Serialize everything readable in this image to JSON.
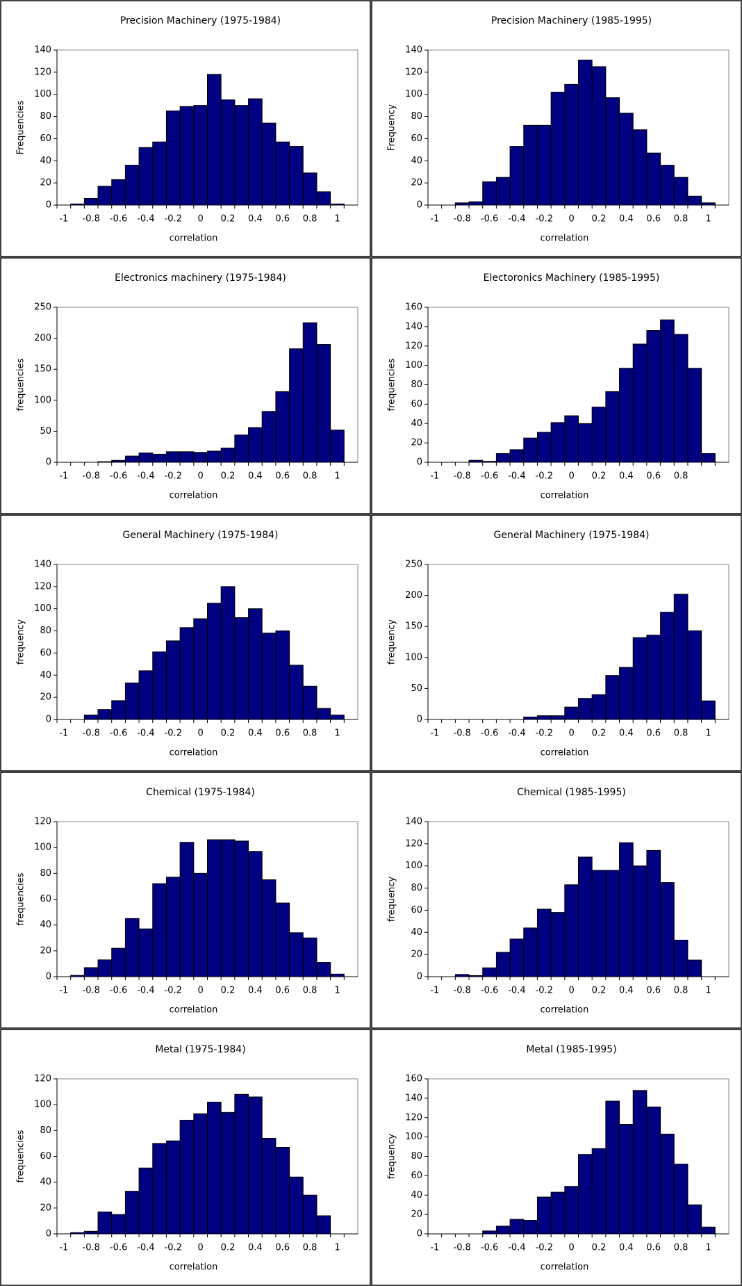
{
  "chart_data": [
    {
      "type": "histogram",
      "title": "Precision Machinery (1975-1984)",
      "x_label": "correlation",
      "y_label": "Frequencies",
      "color": "#000080",
      "bins": [
        -1.05,
        -0.95,
        -0.85,
        -0.75,
        -0.65,
        -0.55,
        -0.45,
        -0.35,
        -0.25,
        -0.15,
        -0.05,
        0.05,
        0.15,
        0.25,
        0.35,
        0.45,
        0.55,
        0.65,
        0.75,
        0.85,
        0.95,
        1.05
      ],
      "values": [
        0,
        1,
        6,
        17,
        23,
        36,
        52,
        57,
        85,
        89,
        90,
        118,
        95,
        90,
        96,
        74,
        57,
        53,
        29,
        12,
        1
      ],
      "xlim": [
        -1.05,
        1.15
      ],
      "xticks": [
        -1,
        -0.8,
        -0.6,
        -0.4,
        -0.2,
        0,
        0.2,
        0.4,
        0.6,
        0.8,
        1
      ],
      "ylim": [
        0,
        140
      ],
      "yticks": [
        0,
        20,
        40,
        60,
        80,
        100,
        120,
        140
      ]
    },
    {
      "type": "histogram",
      "title": "Precision Machinery (1985-1995)",
      "x_label": "correlation",
      "y_label": "Frequency",
      "color": "#000080",
      "bins": [
        -1.05,
        -0.95,
        -0.85,
        -0.75,
        -0.65,
        -0.55,
        -0.45,
        -0.35,
        -0.25,
        -0.15,
        -0.05,
        0.05,
        0.15,
        0.25,
        0.35,
        0.45,
        0.55,
        0.65,
        0.75,
        0.85,
        0.95,
        1.05
      ],
      "values": [
        0,
        0,
        2,
        3,
        21,
        25,
        53,
        72,
        72,
        102,
        109,
        131,
        125,
        97,
        83,
        68,
        47,
        36,
        25,
        8,
        2
      ],
      "xlim": [
        -1.05,
        1.15
      ],
      "xticks": [
        -1,
        -0.8,
        -0.6,
        -0.4,
        -0.2,
        0,
        0.2,
        0.4,
        0.6,
        0.8,
        1
      ],
      "ylim": [
        0,
        140
      ],
      "yticks": [
        0,
        20,
        40,
        60,
        80,
        100,
        120,
        140
      ]
    },
    {
      "type": "histogram",
      "title": "Electronics machinery (1975-1984)",
      "x_label": "correlation",
      "y_label": "frequencies",
      "color": "#000080",
      "bins": [
        -1.05,
        -0.95,
        -0.85,
        -0.75,
        -0.65,
        -0.55,
        -0.45,
        -0.35,
        -0.25,
        -0.15,
        -0.05,
        0.05,
        0.15,
        0.25,
        0.35,
        0.45,
        0.55,
        0.65,
        0.75,
        0.85,
        0.95,
        1.05
      ],
      "values": [
        0,
        0,
        0,
        1,
        3,
        10,
        15,
        13,
        17,
        17,
        16,
        18,
        23,
        44,
        56,
        82,
        114,
        183,
        225,
        190,
        52
      ],
      "xlim": [
        -1.05,
        1.15
      ],
      "xticks": [
        -1,
        -0.8,
        -0.6,
        -0.4,
        -0.2,
        0,
        0.2,
        0.4,
        0.6,
        0.8,
        1
      ],
      "ylim": [
        0,
        250
      ],
      "yticks": [
        0,
        50,
        100,
        150,
        200,
        250
      ]
    },
    {
      "type": "histogram",
      "title": "Electoronics Machinery (1985-1995)",
      "x_label": "correlation",
      "y_label": "frequencies",
      "color": "#000080",
      "bins": [
        -1.05,
        -0.95,
        -0.85,
        -0.75,
        -0.65,
        -0.55,
        -0.45,
        -0.35,
        -0.25,
        -0.15,
        -0.05,
        0.05,
        0.15,
        0.25,
        0.35,
        0.45,
        0.55,
        0.65,
        0.75,
        0.85,
        0.95,
        1.05
      ],
      "values": [
        0,
        0,
        0,
        2,
        1,
        9,
        13,
        25,
        31,
        41,
        48,
        40,
        57,
        73,
        97,
        122,
        136,
        147,
        132,
        97,
        9
      ],
      "xlim": [
        -1.05,
        1.15
      ],
      "xticks": [
        -1,
        -0.8,
        -0.6,
        -0.4,
        -0.2,
        0,
        0.2,
        0.4,
        0.6,
        0.8
      ],
      "ylim": [
        0,
        160
      ],
      "yticks": [
        0,
        20,
        40,
        60,
        80,
        100,
        120,
        140,
        160
      ]
    },
    {
      "type": "histogram",
      "title": "General Machinery (1975-1984)",
      "x_label": "correlation",
      "y_label": "frequency",
      "color": "#000080",
      "bins": [
        -1.05,
        -0.95,
        -0.85,
        -0.75,
        -0.65,
        -0.55,
        -0.45,
        -0.35,
        -0.25,
        -0.15,
        -0.05,
        0.05,
        0.15,
        0.25,
        0.35,
        0.45,
        0.55,
        0.65,
        0.75,
        0.85,
        0.95,
        1.05
      ],
      "values": [
        0,
        0,
        4,
        9,
        17,
        33,
        44,
        61,
        71,
        83,
        91,
        105,
        120,
        92,
        100,
        78,
        80,
        49,
        30,
        10,
        4
      ],
      "xlim": [
        -1.05,
        1.15
      ],
      "xticks": [
        -1,
        -0.8,
        -0.6,
        -0.4,
        -0.2,
        0,
        0.2,
        0.4,
        0.6,
        0.8,
        1
      ],
      "ylim": [
        0,
        140
      ],
      "yticks": [
        0,
        20,
        40,
        60,
        80,
        100,
        120,
        140
      ]
    },
    {
      "type": "histogram",
      "title": "General Machinery (1975-1984)",
      "x_label": "correlation",
      "y_label": "frequency",
      "color": "#000080",
      "bins": [
        -1.05,
        -0.95,
        -0.85,
        -0.75,
        -0.65,
        -0.55,
        -0.45,
        -0.35,
        -0.25,
        -0.15,
        -0.05,
        0.05,
        0.15,
        0.25,
        0.35,
        0.45,
        0.55,
        0.65,
        0.75,
        0.85,
        0.95,
        1.05
      ],
      "values": [
        0,
        0,
        0,
        0,
        0,
        0,
        0,
        4,
        6,
        6,
        20,
        34,
        40,
        71,
        84,
        132,
        136,
        173,
        202,
        143,
        30
      ],
      "xlim": [
        -1.05,
        1.15
      ],
      "xticks": [
        -1,
        -0.8,
        -0.6,
        -0.4,
        -0.2,
        0,
        0.2,
        0.4,
        0.6,
        0.8,
        1
      ],
      "ylim": [
        0,
        250
      ],
      "yticks": [
        0,
        50,
        100,
        150,
        200,
        250
      ]
    },
    {
      "type": "histogram",
      "title": "Chemical (1975-1984)",
      "x_label": "correlation",
      "y_label": "frequencies",
      "color": "#000080",
      "bins": [
        -1.05,
        -0.95,
        -0.85,
        -0.75,
        -0.65,
        -0.55,
        -0.45,
        -0.35,
        -0.25,
        -0.15,
        -0.05,
        0.05,
        0.15,
        0.25,
        0.35,
        0.45,
        0.55,
        0.65,
        0.75,
        0.85,
        0.95,
        1.05
      ],
      "values": [
        0,
        1,
        7,
        13,
        22,
        45,
        37,
        72,
        77,
        104,
        80,
        106,
        106,
        105,
        97,
        75,
        57,
        34,
        30,
        11,
        2
      ],
      "xlim": [
        -1.05,
        1.15
      ],
      "xticks": [
        -1,
        -0.8,
        -0.6,
        -0.4,
        -0.2,
        0,
        0.2,
        0.4,
        0.6,
        0.8,
        1
      ],
      "ylim": [
        0,
        120
      ],
      "yticks": [
        0,
        20,
        40,
        60,
        80,
        100,
        120
      ]
    },
    {
      "type": "histogram",
      "title": "Chemical (1985-1995)",
      "x_label": "correlation",
      "y_label": "frequency",
      "color": "#000080",
      "bins": [
        -1.05,
        -0.95,
        -0.85,
        -0.75,
        -0.65,
        -0.55,
        -0.45,
        -0.35,
        -0.25,
        -0.15,
        -0.05,
        0.05,
        0.15,
        0.25,
        0.35,
        0.45,
        0.55,
        0.65,
        0.75,
        0.85,
        0.95,
        1.05
      ],
      "values": [
        0,
        0,
        2,
        1,
        8,
        22,
        34,
        44,
        61,
        58,
        83,
        108,
        96,
        96,
        121,
        100,
        114,
        85,
        33,
        15,
        0
      ],
      "xlim": [
        -1.05,
        1.15
      ],
      "xticks": [
        -1,
        -0.8,
        -0.6,
        -0.4,
        -0.2,
        0,
        0.2,
        0.4,
        0.6,
        0.8,
        1
      ],
      "ylim": [
        0,
        140
      ],
      "yticks": [
        0,
        20,
        40,
        60,
        80,
        100,
        120,
        140
      ]
    },
    {
      "type": "histogram",
      "title": "Metal (1975-1984)",
      "x_label": "correlation",
      "y_label": "frequencies",
      "color": "#000080",
      "bins": [
        -1.05,
        -0.95,
        -0.85,
        -0.75,
        -0.65,
        -0.55,
        -0.45,
        -0.35,
        -0.25,
        -0.15,
        -0.05,
        0.05,
        0.15,
        0.25,
        0.35,
        0.45,
        0.55,
        0.65,
        0.75,
        0.85,
        0.95,
        1.05
      ],
      "values": [
        0,
        1,
        2,
        17,
        15,
        33,
        51,
        70,
        72,
        88,
        93,
        102,
        94,
        108,
        106,
        74,
        67,
        44,
        30,
        14,
        0
      ],
      "xlim": [
        -1.05,
        1.15
      ],
      "xticks": [
        -1,
        -0.8,
        -0.6,
        -0.4,
        -0.2,
        0,
        0.2,
        0.4,
        0.6,
        0.8,
        1
      ],
      "ylim": [
        0,
        120
      ],
      "yticks": [
        0,
        20,
        40,
        60,
        80,
        100,
        120
      ]
    },
    {
      "type": "histogram",
      "title": "Metal (1985-1995)",
      "x_label": "correlation",
      "y_label": "frequency",
      "color": "#000080",
      "bins": [
        -1.05,
        -0.95,
        -0.85,
        -0.75,
        -0.65,
        -0.55,
        -0.45,
        -0.35,
        -0.25,
        -0.15,
        -0.05,
        0.05,
        0.15,
        0.25,
        0.35,
        0.45,
        0.55,
        0.65,
        0.75,
        0.85,
        0.95,
        1.05
      ],
      "values": [
        0,
        0,
        0,
        0,
        3,
        8,
        15,
        14,
        38,
        43,
        49,
        82,
        88,
        137,
        113,
        148,
        131,
        103,
        72,
        30,
        7
      ],
      "xlim": [
        -1.05,
        1.15
      ],
      "xticks": [
        -1,
        -0.8,
        -0.6,
        -0.4,
        -0.2,
        0,
        0.2,
        0.4,
        0.6,
        0.8,
        1
      ],
      "ylim": [
        0,
        160
      ],
      "yticks": [
        0,
        20,
        40,
        60,
        80,
        100,
        120,
        140,
        160
      ]
    }
  ]
}
